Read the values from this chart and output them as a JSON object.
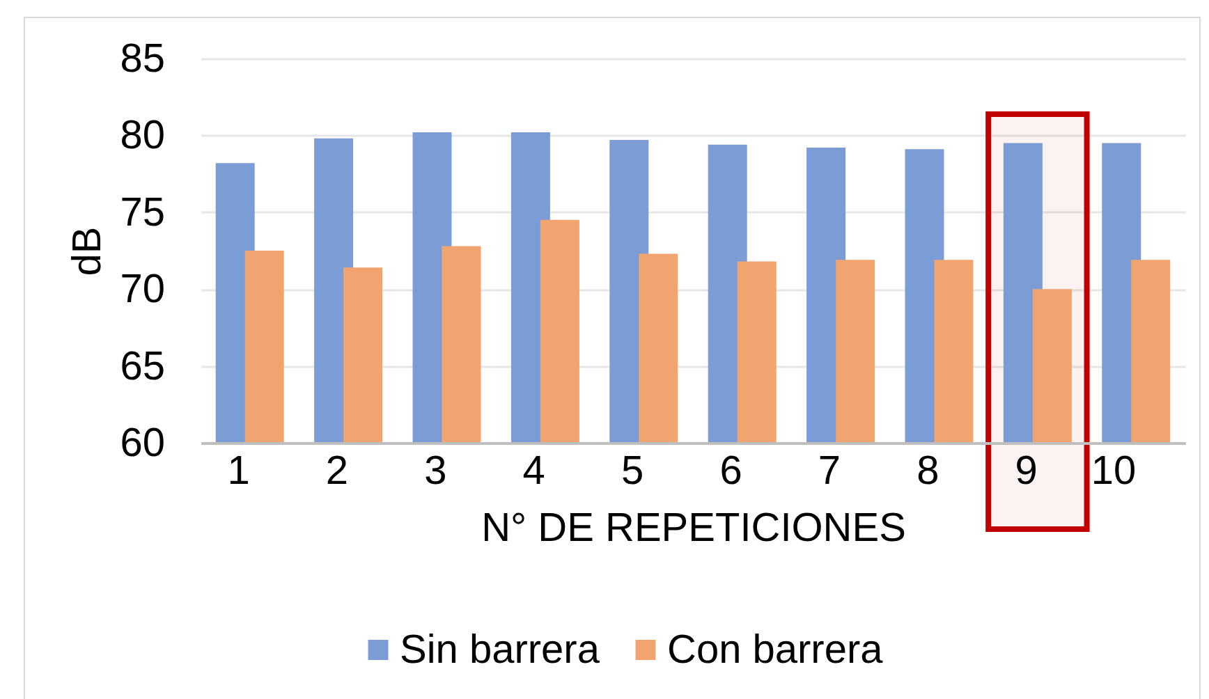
{
  "chart_data": {
    "type": "bar",
    "categories": [
      "1",
      "2",
      "3",
      "4",
      "5",
      "6",
      "7",
      "8",
      "9",
      "10"
    ],
    "series": [
      {
        "name": "Sin barrera",
        "color": "#7c9cd6",
        "values": [
          78.2,
          79.8,
          80.2,
          80.2,
          79.7,
          79.4,
          79.2,
          79.1,
          79.5,
          79.5
        ]
      },
      {
        "name": "Con barrera",
        "color": "#f1a46f",
        "values": [
          72.5,
          71.4,
          72.8,
          74.5,
          72.3,
          71.8,
          71.9,
          71.9,
          70.0,
          71.9
        ]
      }
    ],
    "xlabel": "N° DE REPETICIONES",
    "ylabel": "dB",
    "ylim": [
      60,
      85
    ],
    "yticks": [
      60,
      65,
      70,
      75,
      80,
      85
    ],
    "bands": [
      {
        "axis": "x",
        "from": "9",
        "to": "9",
        "color": "#c00000"
      }
    ],
    "grid": "y",
    "legend": "bottom"
  }
}
